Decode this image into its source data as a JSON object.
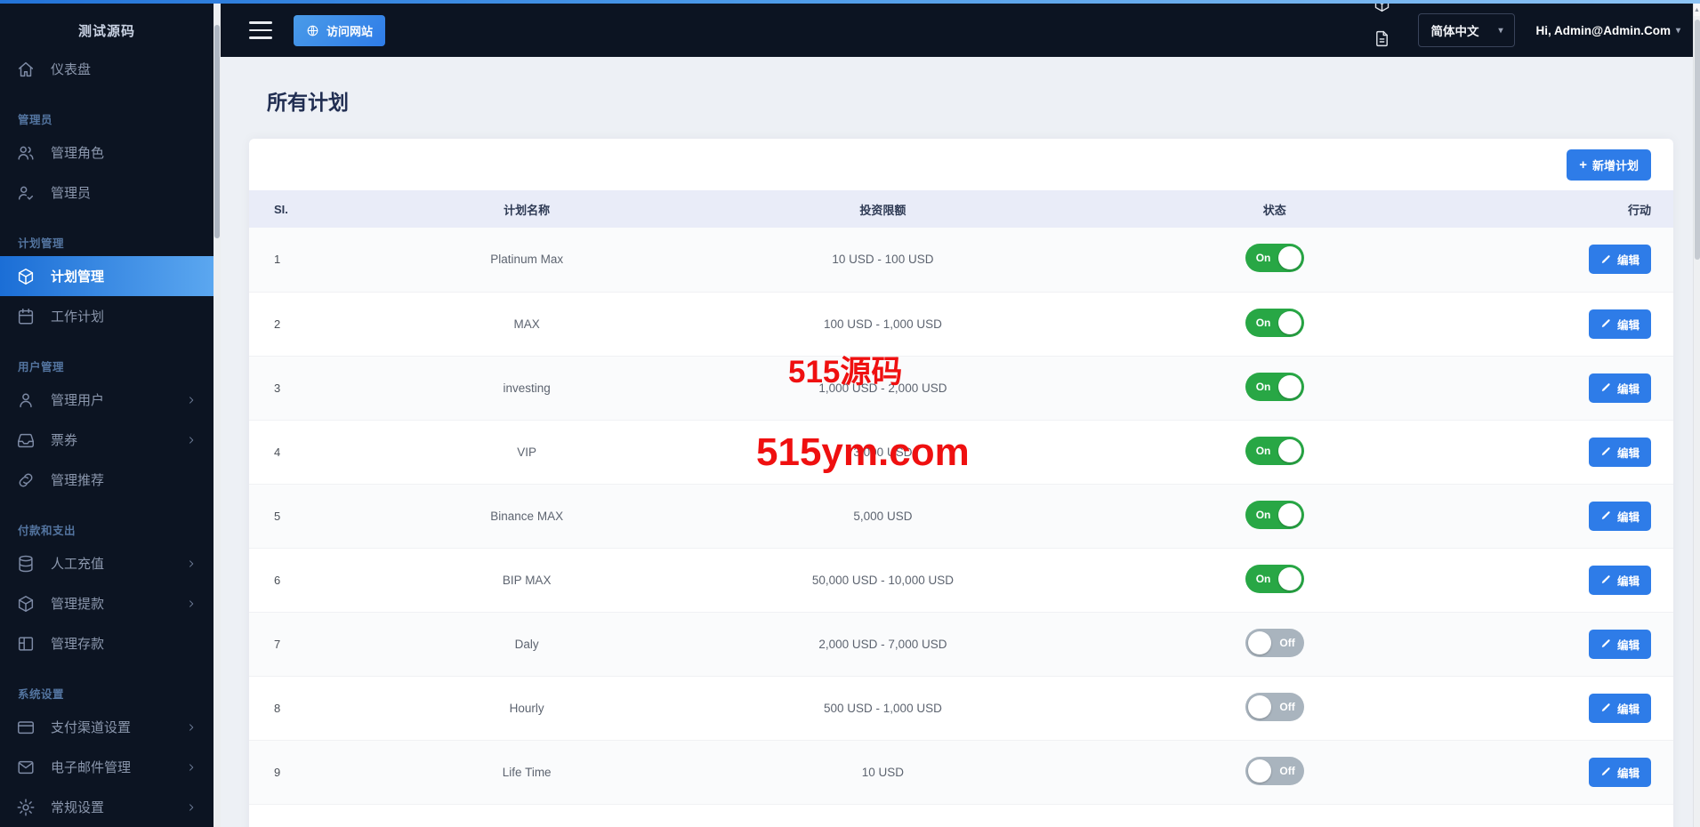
{
  "sidebar": {
    "title": "测试源码",
    "groups": [
      {
        "section": null,
        "items": [
          {
            "label": "仪表盘",
            "icon": "home",
            "active": false,
            "chevron": false
          }
        ]
      },
      {
        "section": "管理员",
        "items": [
          {
            "label": "管理角色",
            "icon": "users",
            "active": false,
            "chevron": false
          },
          {
            "label": "管理员",
            "icon": "user-check",
            "active": false,
            "chevron": false
          }
        ]
      },
      {
        "section": "计划管理",
        "items": [
          {
            "label": "计划管理",
            "icon": "package",
            "active": true,
            "chevron": false
          },
          {
            "label": "工作计划",
            "icon": "calendar",
            "active": false,
            "chevron": false
          }
        ]
      },
      {
        "section": "用户管理",
        "items": [
          {
            "label": "管理用户",
            "icon": "user",
            "active": false,
            "chevron": true
          },
          {
            "label": "票券",
            "icon": "inbox",
            "active": false,
            "chevron": true
          },
          {
            "label": "管理推荐",
            "icon": "link",
            "active": false,
            "chevron": false
          }
        ]
      },
      {
        "section": "付款和支出",
        "items": [
          {
            "label": "人工充值",
            "icon": "database",
            "active": false,
            "chevron": true
          },
          {
            "label": "管理提款",
            "icon": "package",
            "active": false,
            "chevron": true
          },
          {
            "label": "管理存款",
            "icon": "layout",
            "active": false,
            "chevron": false
          }
        ]
      },
      {
        "section": "系统设置",
        "items": [
          {
            "label": "支付渠道设置",
            "icon": "credit-card",
            "active": false,
            "chevron": true
          },
          {
            "label": "电子邮件管理",
            "icon": "mail",
            "active": false,
            "chevron": true
          },
          {
            "label": "常规设置",
            "icon": "gear",
            "active": false,
            "chevron": true
          }
        ]
      }
    ]
  },
  "topbar": {
    "visit_site_label": "访问网站",
    "icons": [
      {
        "name": "inbox-icon",
        "glyph": "inbox"
      },
      {
        "name": "package-icon",
        "glyph": "package"
      },
      {
        "name": "file-text-icon",
        "glyph": "file-text"
      },
      {
        "name": "table-icon",
        "glyph": "table"
      },
      {
        "name": "bell-icon",
        "glyph": "bell"
      }
    ],
    "language": "简体中文",
    "user": "Hi, Admin@Admin.Com"
  },
  "main": {
    "title": "所有计划",
    "add_button_label": "新增计划",
    "table": {
      "headers": [
        "SI.",
        "计划名称",
        "投资限额",
        "状态",
        "行动"
      ],
      "toggle_on_label": "On",
      "toggle_off_label": "Off",
      "edit_label": "编辑",
      "rows": [
        {
          "si": "1",
          "name": "Platinum Max",
          "limit": "10 USD - 100 USD",
          "status": "on"
        },
        {
          "si": "2",
          "name": "MAX",
          "limit": "100 USD - 1,000 USD",
          "status": "on"
        },
        {
          "si": "3",
          "name": "investing",
          "limit": "1,000 USD - 2,000 USD",
          "status": "on"
        },
        {
          "si": "4",
          "name": "VIP",
          "limit": "3,000 USD",
          "status": "on"
        },
        {
          "si": "5",
          "name": "Binance MAX",
          "limit": "5,000 USD",
          "status": "on"
        },
        {
          "si": "6",
          "name": "BIP MAX",
          "limit": "50,000 USD - 10,000 USD",
          "status": "on"
        },
        {
          "si": "7",
          "name": "Daly",
          "limit": "2,000 USD - 7,000 USD",
          "status": "off"
        },
        {
          "si": "8",
          "name": "Hourly",
          "limit": "500 USD - 1,000 USD",
          "status": "off"
        },
        {
          "si": "9",
          "name": "Life Time",
          "limit": "10 USD",
          "status": "off"
        }
      ]
    }
  },
  "watermarks": [
    "515源码",
    "515ym.com"
  ],
  "colors": {
    "accent_blue": "#2e7ce8",
    "toggle_on_green": "#28a745",
    "toggle_off_gray": "#a9b4be",
    "sidebar_bg": "#0c1422",
    "active_gradient_start": "#1b6ed6",
    "active_gradient_end": "#5ba7f0",
    "watermark_red": "#ef1010",
    "table_header_bg": "#e9ecf8"
  }
}
